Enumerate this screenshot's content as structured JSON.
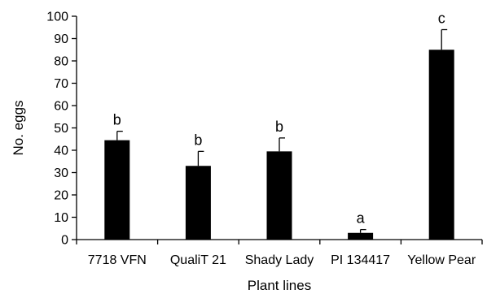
{
  "chart_data": {
    "type": "bar",
    "categories": [
      "7718 VFN",
      "QualiT 21",
      "Shady Lady",
      "PI 134417",
      "Yellow Pear"
    ],
    "values": [
      44.5,
      33,
      39.5,
      3,
      85
    ],
    "errors": [
      4,
      6.5,
      6,
      1.5,
      9
    ],
    "significance_letters": [
      "b",
      "b",
      "b",
      "a",
      "c"
    ],
    "xlabel": "Plant lines",
    "ylabel": "No. eggs",
    "ylim": [
      0,
      100
    ],
    "yticks": [
      "0",
      "10",
      "20",
      "30",
      "40",
      "50",
      "60",
      "70",
      "80",
      "90",
      "100"
    ],
    "grid": false,
    "bar_color": "#000000"
  }
}
